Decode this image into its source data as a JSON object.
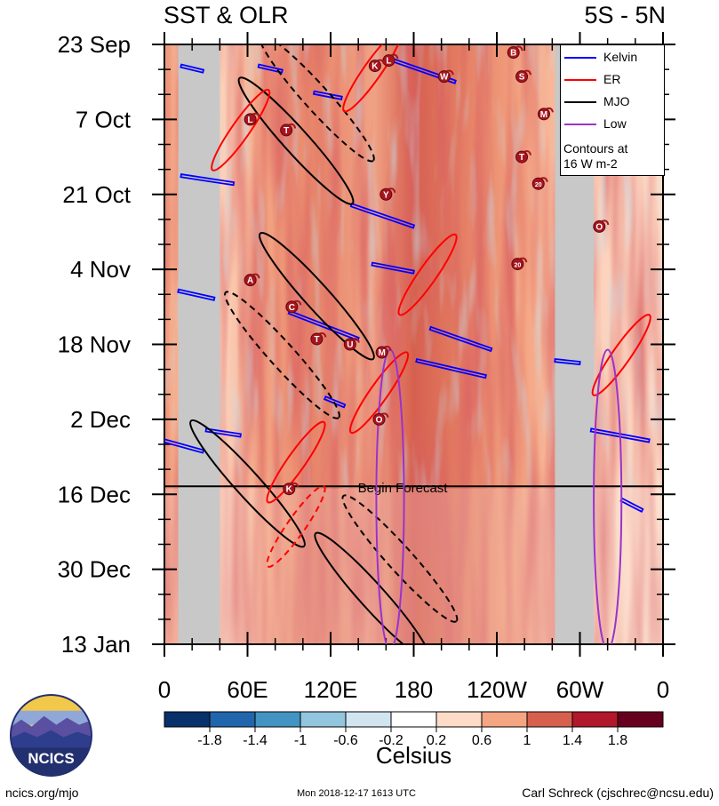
{
  "title_left": "SST & OLR",
  "title_right": "5S - 5N",
  "footer": {
    "left": "ncics.org/mjo",
    "middle": "Mon 2018-12-17 1613 UTC",
    "right": "Carl Schreck (cjschrec@ncsu.edu)"
  },
  "logo_text": "NCICS",
  "forecast_label": "Begin Forecast",
  "legend": {
    "items": [
      {
        "label": "Kelvin",
        "color": "#0000ff"
      },
      {
        "label": "ER",
        "color": "#ff0000"
      },
      {
        "label": "MJO",
        "color": "#000000"
      },
      {
        "label": "Low",
        "color": "#9933cc"
      }
    ],
    "note_line1": "Contours at",
    "note_line2": "16 W m-2"
  },
  "colorbar": {
    "title": "Celsius",
    "labels": [
      "-1.8",
      "-1.4",
      "-1",
      "-0.6",
      "-0.2",
      "0.2",
      "0.6",
      "1",
      "1.4",
      "1.8"
    ],
    "colors": [
      "#08306b",
      "#2166ac",
      "#4393c3",
      "#92c5de",
      "#d1e5f0",
      "#ffffff",
      "#fddbc7",
      "#f4a582",
      "#d6604d",
      "#b2182b",
      "#67001f"
    ]
  },
  "chart_data": {
    "type": "heatmap",
    "x_axis": {
      "labels": [
        "0",
        "60E",
        "120E",
        "180",
        "120W",
        "60W",
        "0"
      ],
      "range_deg_east": [
        0,
        360
      ]
    },
    "y_axis": {
      "labels": [
        "23 Sep",
        "7 Oct",
        "21 Oct",
        "4 Nov",
        "18 Nov",
        "2 Dec",
        "16 Dec",
        "30 Dec",
        "13 Jan"
      ],
      "range_days_from_23_sep": [
        0,
        112
      ],
      "direction": "time increases downward"
    },
    "forecast_start_day": 82.5,
    "land_masks_deg_east": [
      [
        10,
        40
      ],
      [
        282,
        310
      ]
    ],
    "kelvin_contours": [
      {
        "lon": [
          12,
          28
        ],
        "day": [
          4,
          5
        ]
      },
      {
        "lon": [
          68,
          85
        ],
        "day": [
          4,
          5
        ]
      },
      {
        "lon": [
          160,
          210
        ],
        "day": [
          2.5,
          7
        ]
      },
      {
        "lon": [
          108,
          128
        ],
        "day": [
          9,
          10
        ]
      },
      {
        "lon": [
          12,
          50
        ],
        "day": [
          24.5,
          26
        ]
      },
      {
        "lon": [
          135,
          180
        ],
        "day": [
          30,
          34
        ]
      },
      {
        "lon": [
          150,
          180
        ],
        "day": [
          41,
          42.5
        ]
      },
      {
        "lon": [
          10,
          36
        ],
        "day": [
          46,
          47.5
        ]
      },
      {
        "lon": [
          90,
          140
        ],
        "day": [
          50,
          55
        ]
      },
      {
        "lon": [
          192,
          236
        ],
        "day": [
          53,
          57
        ]
      },
      {
        "lon": [
          182,
          232
        ],
        "day": [
          59,
          62
        ]
      },
      {
        "lon": [
          282,
          300
        ],
        "day": [
          59,
          59.5
        ]
      },
      {
        "lon": [
          116,
          130
        ],
        "day": [
          66,
          67.5
        ]
      },
      {
        "lon": [
          30,
          55
        ],
        "day": [
          72,
          73
        ]
      },
      {
        "lon": [
          0,
          28
        ],
        "day": [
          74,
          76
        ]
      },
      {
        "lon": [
          308,
          350
        ],
        "day": [
          72,
          74
        ]
      },
      {
        "lon": [
          330,
          345
        ],
        "day": [
          85,
          87
        ]
      }
    ],
    "mjo_contours": [
      {
        "sign": "positive",
        "center_lon": 95,
        "center_day": 18,
        "note": "eastward tilted band 70E-160E"
      },
      {
        "sign": "negative",
        "center_lon": 110,
        "center_day": 10,
        "note": "eastward tilted band"
      },
      {
        "sign": "positive",
        "center_lon": 110,
        "center_day": 47,
        "note": "eastward tilted band 55E-160E"
      },
      {
        "sign": "negative",
        "center_lon": 85,
        "center_day": 58
      },
      {
        "sign": "positive",
        "center_lon": 60,
        "center_day": 82
      },
      {
        "sign": "negative",
        "center_lon": 170,
        "center_day": 96
      },
      {
        "sign": "positive",
        "center_lon": 150,
        "center_day": 103
      }
    ],
    "er_contours": [
      {
        "sign": "positive",
        "center_lon": 150,
        "center_day": 5
      },
      {
        "sign": "positive",
        "center_lon": 55,
        "center_day": 16
      },
      {
        "sign": "positive",
        "center_lon": 190,
        "center_day": 43
      },
      {
        "sign": "positive",
        "center_lon": 155,
        "center_day": 65
      },
      {
        "sign": "positive",
        "center_lon": 95,
        "center_day": 78
      },
      {
        "sign": "negative",
        "center_lon": 95,
        "center_day": 90
      },
      {
        "sign": "positive",
        "center_lon": 330,
        "center_day": 58
      }
    ],
    "low_contours": [
      {
        "center_lon": 163,
        "center_day": 85,
        "lon_half_width": 10,
        "day_half_height": 28
      },
      {
        "center_lon": 320,
        "center_day": 85,
        "lon_half_width": 10,
        "day_half_height": 28
      }
    ],
    "storm_markers": [
      {
        "label": "L",
        "lon": 62,
        "day": 14
      },
      {
        "label": "T",
        "lon": 88,
        "day": 16
      },
      {
        "label": "A",
        "lon": 62,
        "day": 44
      },
      {
        "label": "C",
        "lon": 92,
        "day": 49
      },
      {
        "label": "T",
        "lon": 110,
        "day": 55
      },
      {
        "label": "U",
        "lon": 134,
        "day": 56
      },
      {
        "label": "M",
        "lon": 157,
        "day": 57.5
      },
      {
        "label": "O",
        "lon": 155,
        "day": 70
      },
      {
        "label": "Y",
        "lon": 160,
        "day": 28
      },
      {
        "label": "W",
        "lon": 202,
        "day": 6
      },
      {
        "label": "L",
        "lon": 162,
        "day": 3
      },
      {
        "label": "K",
        "lon": 152,
        "day": 4
      },
      {
        "label": "B",
        "lon": 252,
        "day": 1.5
      },
      {
        "label": "S",
        "lon": 258,
        "day": 6
      },
      {
        "label": "M",
        "lon": 274,
        "day": 13
      },
      {
        "label": "T",
        "lon": 258,
        "day": 21
      },
      {
        "label": "20",
        "lon": 270,
        "day": 26
      },
      {
        "label": "20",
        "lon": 255,
        "day": 41
      },
      {
        "label": "O",
        "lon": 314,
        "day": 34
      },
      {
        "label": "K",
        "lon": 90,
        "day": 83
      }
    ]
  }
}
